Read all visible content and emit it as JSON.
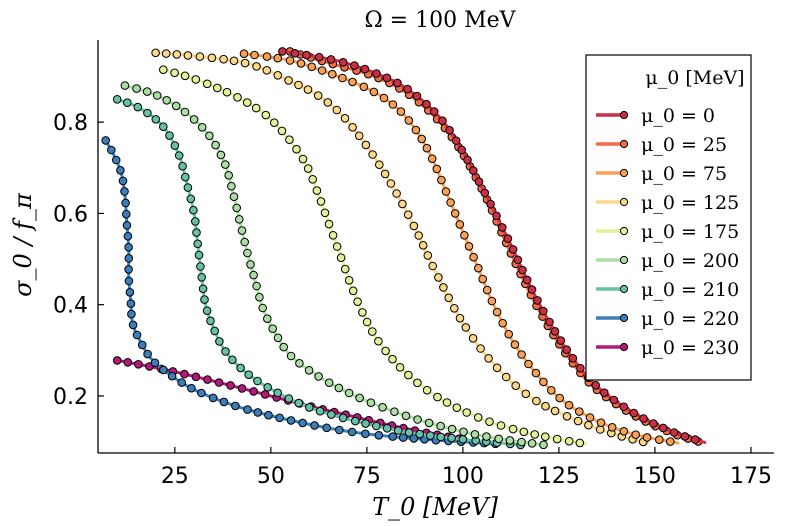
{
  "chart_data": {
    "type": "line",
    "title": "Ω = 100 MeV",
    "xlabel": "T_0 [MeV]",
    "ylabel": "σ_0 / f_π",
    "xlim": [
      5,
      181
    ],
    "ylim": [
      0.075,
      0.98
    ],
    "xticks": [
      25,
      50,
      75,
      100,
      125,
      150,
      175
    ],
    "yticks": [
      0.2,
      0.4,
      0.6,
      0.8
    ],
    "legend_title": "μ_0 [MeV]",
    "legend_position": "top-right",
    "series": [
      {
        "name": "μ_0 = 0",
        "color": "#cb2f44",
        "x": [
          53,
          67,
          78,
          86,
          94,
          100,
          106,
          112,
          117,
          122,
          128,
          135,
          145,
          155,
          163
        ],
        "y": [
          0.955,
          0.935,
          0.905,
          0.87,
          0.81,
          0.735,
          0.64,
          0.54,
          0.45,
          0.37,
          0.29,
          0.22,
          0.16,
          0.12,
          0.098
        ]
      },
      {
        "name": "μ_0 = 25",
        "color": "#f36c44",
        "x": [
          55,
          65,
          77,
          86,
          94,
          100,
          106,
          111,
          116,
          121,
          127,
          134,
          144,
          154,
          162
        ],
        "y": [
          0.955,
          0.93,
          0.9,
          0.86,
          0.8,
          0.73,
          0.635,
          0.54,
          0.45,
          0.37,
          0.29,
          0.22,
          0.16,
          0.12,
          0.098
        ]
      },
      {
        "name": "μ_0 = 75",
        "color": "#f8a054",
        "x": [
          43,
          55,
          66,
          76,
          83,
          88,
          92,
          96,
          100,
          104,
          108,
          113,
          119,
          126,
          135,
          145,
          156
        ],
        "y": [
          0.95,
          0.935,
          0.905,
          0.87,
          0.83,
          0.78,
          0.72,
          0.64,
          0.56,
          0.48,
          0.4,
          0.32,
          0.25,
          0.19,
          0.145,
          0.115,
          0.097
        ]
      },
      {
        "name": "μ_0 = 125",
        "color": "#fcd98a",
        "x": [
          20,
          30,
          40,
          47,
          55,
          62,
          68,
          73,
          78,
          83,
          88,
          93,
          100,
          108,
          118,
          130,
          140,
          148
        ],
        "y": [
          0.952,
          0.945,
          0.935,
          0.92,
          0.89,
          0.86,
          0.82,
          0.77,
          0.71,
          0.64,
          0.56,
          0.47,
          0.36,
          0.27,
          0.195,
          0.145,
          0.115,
          0.097
        ]
      },
      {
        "name": "μ_0 = 175",
        "color": "#e2f19a",
        "x": [
          22,
          30,
          40,
          48,
          54,
          59,
          62,
          65,
          68,
          71,
          74,
          78,
          84,
          92,
          102,
          112,
          123,
          132
        ],
        "y": [
          0.915,
          0.895,
          0.86,
          0.82,
          0.77,
          0.71,
          0.65,
          0.58,
          0.51,
          0.44,
          0.38,
          0.32,
          0.26,
          0.205,
          0.16,
          0.13,
          0.108,
          0.095
        ]
      },
      {
        "name": "μ_0 = 200",
        "color": "#abdda4",
        "x": [
          12,
          20,
          28,
          34,
          38,
          40,
          42,
          44,
          46,
          48,
          51,
          55,
          62,
          72,
          84,
          96,
          108,
          121
        ],
        "y": [
          0.88,
          0.86,
          0.82,
          0.77,
          0.71,
          0.65,
          0.58,
          0.51,
          0.45,
          0.39,
          0.34,
          0.29,
          0.245,
          0.2,
          0.16,
          0.13,
          0.108,
          0.093
        ]
      },
      {
        "name": "μ_0 = 210",
        "color": "#66c2a5",
        "x": [
          10,
          16,
          22,
          26,
          28,
          30,
          31,
          32,
          33,
          35,
          38,
          43,
          50,
          60,
          72,
          86,
          100,
          116
        ],
        "y": [
          0.85,
          0.83,
          0.79,
          0.73,
          0.67,
          0.6,
          0.53,
          0.46,
          0.4,
          0.35,
          0.3,
          0.255,
          0.215,
          0.175,
          0.145,
          0.12,
          0.105,
          0.092
        ]
      },
      {
        "name": "μ_0 = 220",
        "color": "#3a7fba",
        "x": [
          7,
          9,
          11,
          12,
          12.5,
          13,
          13,
          13.5,
          14,
          16,
          19,
          24,
          31,
          42,
          56,
          72,
          90,
          109
        ],
        "y": [
          0.76,
          0.73,
          0.69,
          0.64,
          0.58,
          0.52,
          0.46,
          0.41,
          0.36,
          0.32,
          0.28,
          0.245,
          0.21,
          0.175,
          0.145,
          0.12,
          0.105,
          0.095
        ]
      },
      {
        "name": "μ_0 = 230",
        "color": "#b5187c",
        "x": [
          10,
          20,
          30,
          40,
          50,
          60,
          70,
          80,
          90,
          100
        ],
        "y": [
          0.278,
          0.262,
          0.243,
          0.222,
          0.2,
          0.178,
          0.158,
          0.138,
          0.12,
          0.105
        ]
      }
    ]
  }
}
